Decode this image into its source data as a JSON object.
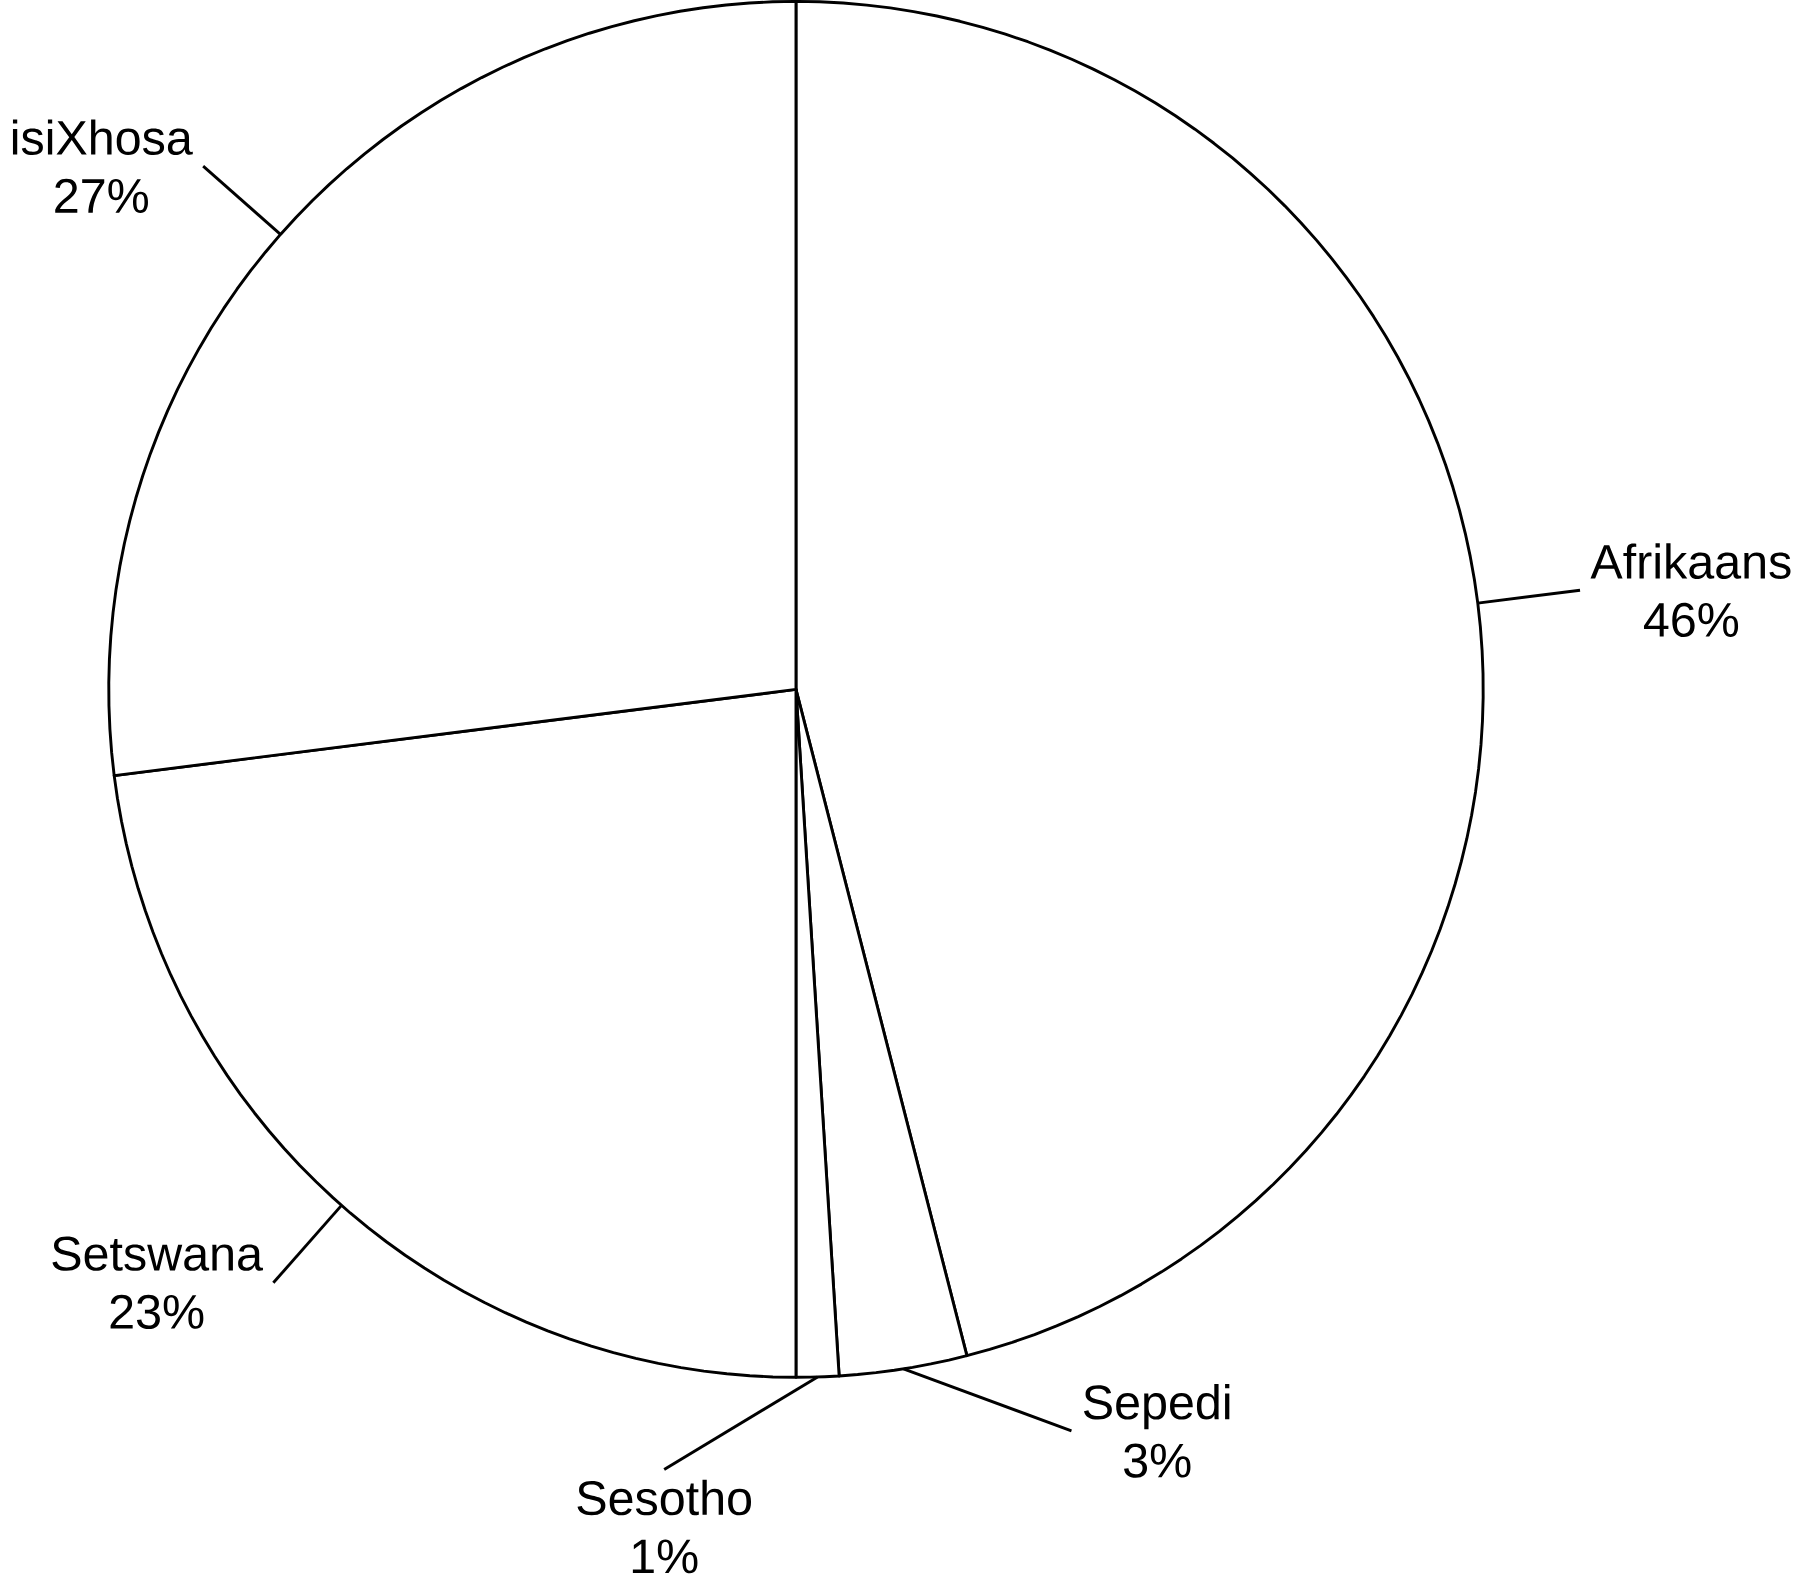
{
  "chart_data": {
    "type": "pie",
    "categories": [
      "Afrikaans",
      "Sepedi",
      "Sesotho",
      "Setswana",
      "isiXhosa"
    ],
    "values": [
      46,
      3,
      1,
      23,
      27
    ],
    "value_labels": [
      "46%",
      "3%",
      "1%",
      "23%",
      "27%"
    ],
    "colors": [
      "#ffffff",
      "#ffffff",
      "#ffffff",
      "#ffffff",
      "#ffffff"
    ]
  }
}
